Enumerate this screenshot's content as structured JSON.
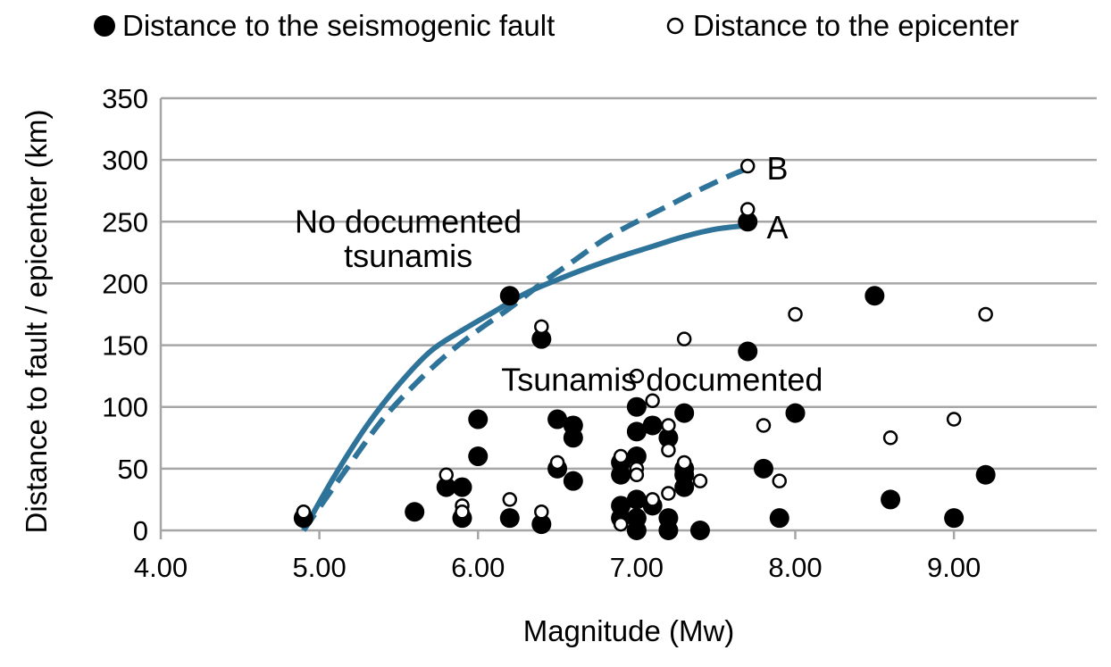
{
  "chart_data": {
    "type": "scatter",
    "xlabel": "Magnitude (Mw)",
    "ylabel": "Distance to fault / epicenter (km)",
    "xlim": [
      4.0,
      9.9
    ],
    "ylim": [
      0,
      350
    ],
    "x_ticks": [
      4.0,
      5.0,
      6.0,
      7.0,
      8.0,
      9.0
    ],
    "x_tick_labels": [
      "4.00",
      "5.00",
      "6.00",
      "7.00",
      "8.00",
      "9.00"
    ],
    "y_ticks": [
      0,
      50,
      100,
      150,
      200,
      250,
      300,
      350
    ],
    "y_tick_labels": [
      "0",
      "50",
      "100",
      "150",
      "200",
      "250",
      "300",
      "350"
    ],
    "grid": "horizontal",
    "legend_placement": "top",
    "colors": {
      "curve": "#2e7399",
      "marker": "#000000",
      "grid": "#a6a6a6"
    },
    "series": [
      {
        "name": "Distance to the seismogenic fault",
        "marker": "filled-circle",
        "points": [
          [
            4.9,
            10
          ],
          [
            5.6,
            15
          ],
          [
            5.8,
            35
          ],
          [
            5.9,
            10
          ],
          [
            5.9,
            35
          ],
          [
            6.0,
            90
          ],
          [
            6.0,
            60
          ],
          [
            6.2,
            190
          ],
          [
            6.2,
            10
          ],
          [
            6.4,
            155
          ],
          [
            6.4,
            5
          ],
          [
            6.5,
            90
          ],
          [
            6.5,
            50
          ],
          [
            6.6,
            85
          ],
          [
            6.6,
            75
          ],
          [
            6.6,
            40
          ],
          [
            6.9,
            55
          ],
          [
            6.9,
            45
          ],
          [
            6.9,
            20
          ],
          [
            6.9,
            10
          ],
          [
            7.0,
            100
          ],
          [
            7.0,
            80
          ],
          [
            7.0,
            60
          ],
          [
            7.0,
            25
          ],
          [
            7.0,
            10
          ],
          [
            7.0,
            0
          ],
          [
            7.1,
            85
          ],
          [
            7.1,
            20
          ],
          [
            7.2,
            75
          ],
          [
            7.2,
            10
          ],
          [
            7.2,
            0
          ],
          [
            7.3,
            95
          ],
          [
            7.3,
            50
          ],
          [
            7.3,
            45
          ],
          [
            7.3,
            35
          ],
          [
            7.4,
            0
          ],
          [
            7.7,
            145
          ],
          [
            7.7,
            250
          ],
          [
            7.8,
            50
          ],
          [
            7.9,
            10
          ],
          [
            8.0,
            95
          ],
          [
            8.5,
            190
          ],
          [
            8.6,
            25
          ],
          [
            9.0,
            10
          ],
          [
            9.2,
            45
          ]
        ]
      },
      {
        "name": "Distance to the epicenter",
        "marker": "open-circle",
        "points": [
          [
            4.9,
            15
          ],
          [
            5.8,
            45
          ],
          [
            5.9,
            20
          ],
          [
            5.9,
            15
          ],
          [
            6.2,
            25
          ],
          [
            6.4,
            165
          ],
          [
            6.4,
            15
          ],
          [
            6.5,
            55
          ],
          [
            6.9,
            60
          ],
          [
            6.9,
            5
          ],
          [
            7.0,
            125
          ],
          [
            7.0,
            50
          ],
          [
            7.0,
            45
          ],
          [
            7.1,
            105
          ],
          [
            7.1,
            25
          ],
          [
            7.2,
            85
          ],
          [
            7.2,
            65
          ],
          [
            7.2,
            30
          ],
          [
            7.3,
            155
          ],
          [
            7.3,
            55
          ],
          [
            7.4,
            40
          ],
          [
            7.7,
            295
          ],
          [
            7.7,
            260
          ],
          [
            7.8,
            85
          ],
          [
            7.9,
            40
          ],
          [
            8.0,
            175
          ],
          [
            8.6,
            75
          ],
          [
            9.0,
            90
          ],
          [
            9.2,
            175
          ]
        ]
      },
      {
        "name": "A",
        "style": "solid-curve",
        "points": [
          [
            4.9,
            0
          ],
          [
            5.1,
            45
          ],
          [
            5.3,
            85
          ],
          [
            5.5,
            118
          ],
          [
            5.7,
            145
          ],
          [
            5.9,
            162
          ],
          [
            6.1,
            177
          ],
          [
            6.3,
            192
          ],
          [
            6.5,
            203
          ],
          [
            6.7,
            213
          ],
          [
            6.9,
            222
          ],
          [
            7.1,
            230
          ],
          [
            7.3,
            238
          ],
          [
            7.5,
            244
          ],
          [
            7.7,
            247
          ]
        ]
      },
      {
        "name": "B",
        "style": "dashed-curve",
        "points": [
          [
            4.9,
            0
          ],
          [
            5.2,
            55
          ],
          [
            5.4,
            90
          ],
          [
            5.6,
            118
          ],
          [
            5.8,
            142
          ],
          [
            6.0,
            162
          ],
          [
            6.2,
            180
          ],
          [
            6.4,
            200
          ],
          [
            6.6,
            218
          ],
          [
            6.8,
            236
          ],
          [
            7.0,
            250
          ],
          [
            7.2,
            263
          ],
          [
            7.4,
            276
          ],
          [
            7.6,
            288
          ],
          [
            7.7,
            293
          ]
        ]
      }
    ],
    "legend": [
      {
        "label": "Distance to the seismogenic fault",
        "marker": "filled-circle"
      },
      {
        "label": "Distance to the epicenter",
        "marker": "open-circle"
      }
    ],
    "annotations": [
      {
        "text": "No documented",
        "x": 5.56,
        "y": 250
      },
      {
        "text": "tsunamis",
        "x": 5.56,
        "y": 222
      },
      {
        "text": "Tsunamis documented",
        "x": 7.16,
        "y": 122
      },
      {
        "text": "B",
        "x": 7.82,
        "y": 293
      },
      {
        "text": "A",
        "x": 7.82,
        "y": 245
      }
    ]
  }
}
